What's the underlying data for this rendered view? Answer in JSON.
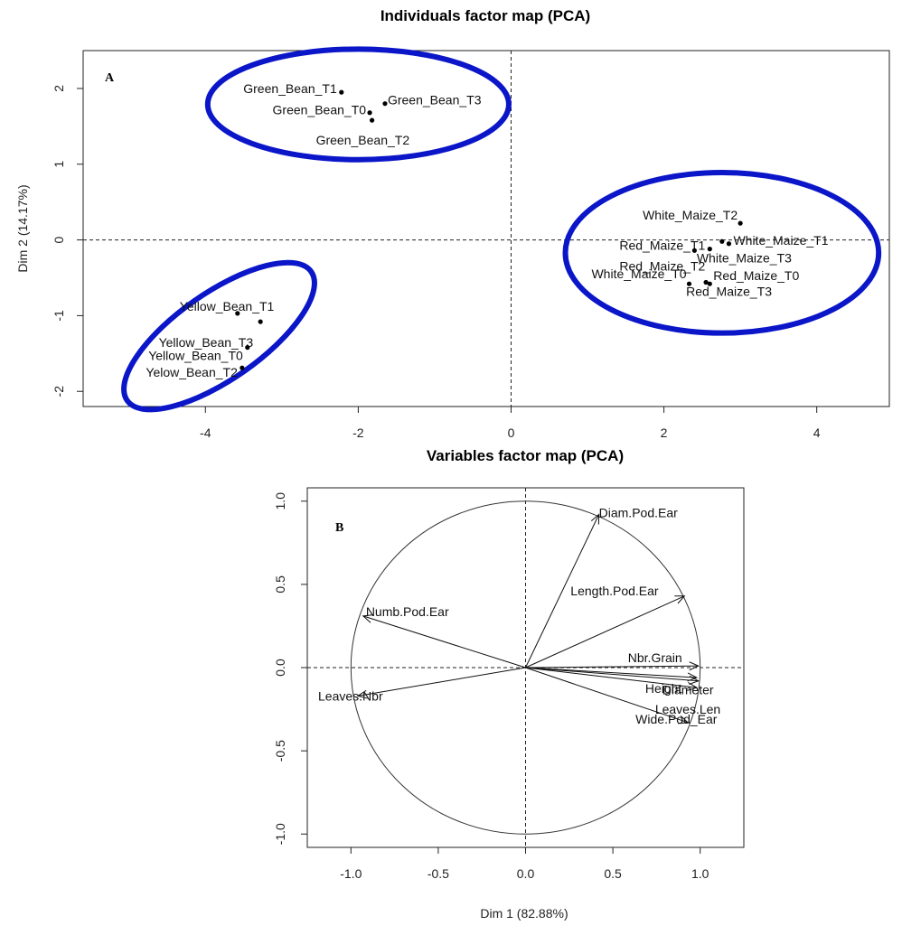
{
  "chart_data": [
    {
      "type": "scatter",
      "title": "Individuals factor map (PCA)",
      "panel_label": "A",
      "xlabel": "",
      "ylabel": "Dim 2 (14.17%)",
      "xlim": [
        -5.6,
        4.95
      ],
      "ylim": [
        -2.2,
        2.5
      ],
      "xticks": [
        -4,
        -2,
        0,
        2,
        4
      ],
      "yticks": [
        -2,
        -1,
        0,
        1,
        2
      ],
      "reference_lines": {
        "x": 0,
        "y": 0,
        "style": "dashed"
      },
      "points": [
        {
          "label": "Green_Bean_T1",
          "x": -2.22,
          "y": 1.95
        },
        {
          "label": "Green_Bean_T0",
          "x": -1.85,
          "y": 1.68
        },
        {
          "label": "Green_Bean_T3",
          "x": -1.65,
          "y": 1.8
        },
        {
          "label": "Green_Bean_T2",
          "x": -1.82,
          "y": 1.58
        },
        {
          "label": "White_Maize_T2",
          "x": 3.0,
          "y": 0.22
        },
        {
          "label": "White_Maize_T1",
          "x": 2.85,
          "y": -0.05
        },
        {
          "label": "Red_Maize_T1",
          "x": 2.6,
          "y": -0.12
        },
        {
          "label": "Red_Maize_T2",
          "x": 2.4,
          "y": -0.14
        },
        {
          "label": "White_Maize_T3",
          "x": 2.76,
          "y": -0.02
        },
        {
          "label": "White_Maize_T0",
          "x": 2.33,
          "y": -0.58
        },
        {
          "label": "Red_Maize_T0",
          "x": 2.6,
          "y": -0.58
        },
        {
          "label": "Red_Maize_T3",
          "x": 2.55,
          "y": -0.56
        },
        {
          "label": "Yellow_Bean_T1",
          "x": -3.58,
          "y": -0.97
        },
        {
          "label": "Yellow_Bean_T3",
          "x": -3.28,
          "y": -1.08
        },
        {
          "label": "Yellow_Bean_T0",
          "x": -3.45,
          "y": -1.42
        },
        {
          "label": "Yelow_Bean_T2",
          "x": -3.52,
          "y": -1.69
        }
      ],
      "highlight_ellipses": [
        {
          "group": "Green_Bean",
          "cx": -2.0,
          "cy": 1.79,
          "rx": 1.97,
          "ry": 0.73,
          "angle_deg": 0
        },
        {
          "group": "Maize",
          "cx": 2.76,
          "cy": -0.17,
          "rx": 2.05,
          "ry": 1.06,
          "angle_deg": 0
        },
        {
          "group": "Yellow_Bean",
          "cx": -3.82,
          "cy": -1.27,
          "rx": 1.47,
          "ry": 0.57,
          "angle_deg": -35
        }
      ],
      "highlight_color": "#0a16c8"
    },
    {
      "type": "vector",
      "title": "Variables factor map (PCA)",
      "panel_label": "B",
      "xlabel": "Dim 1 (82.88%)",
      "ylabel": "",
      "xlim": [
        -1.25,
        1.25
      ],
      "ylim": [
        -1.08,
        1.08
      ],
      "xticks": [
        -1.0,
        -0.5,
        0.0,
        0.5,
        1.0
      ],
      "yticks": [
        -1.0,
        -0.5,
        0.0,
        0.5,
        1.0
      ],
      "unit_circle": true,
      "reference_lines": {
        "x": 0,
        "y": 0,
        "style": "dashed"
      },
      "vectors": [
        {
          "label": "Diam.Pod.Ear",
          "x": 0.42,
          "y": 0.92
        },
        {
          "label": "Length.Pod.Ear",
          "x": 0.91,
          "y": 0.43
        },
        {
          "label": "Numb.Pod.Ear",
          "x": -0.93,
          "y": 0.31
        },
        {
          "label": "Nbr.Grain",
          "x": 0.99,
          "y": 0.01
        },
        {
          "label": "Height",
          "x": 0.98,
          "y": -0.06
        },
        {
          "label": "Diameter",
          "x": 0.99,
          "y": -0.08
        },
        {
          "label": "Leaves.Len",
          "x": 0.98,
          "y": -0.12
        },
        {
          "label": "Leaves.Nbr",
          "x": -0.96,
          "y": -0.17
        },
        {
          "label": "Wide.Pod_Ear",
          "x": 0.93,
          "y": -0.33
        }
      ]
    }
  ]
}
